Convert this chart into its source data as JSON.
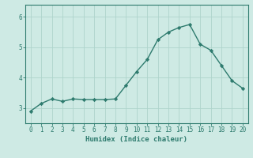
{
  "x": [
    0,
    1,
    2,
    3,
    4,
    5,
    6,
    7,
    8,
    9,
    10,
    11,
    12,
    13,
    14,
    15,
    16,
    17,
    18,
    19,
    20
  ],
  "y": [
    2.9,
    3.15,
    3.3,
    3.22,
    3.3,
    3.28,
    3.28,
    3.28,
    3.3,
    3.75,
    4.2,
    4.6,
    5.25,
    5.5,
    5.65,
    5.75,
    5.1,
    4.9,
    4.4,
    3.9,
    3.65
  ],
  "line_color": "#2e7b6e",
  "marker": "D",
  "markersize": 2.2,
  "linewidth": 1.0,
  "bg_color": "#ceeae4",
  "grid_color": "#aed4cc",
  "xlabel": "Humidex (Indice chaleur)",
  "xlabel_fontsize": 6.5,
  "ylabel_ticks": [
    3,
    4,
    5,
    6
  ],
  "ylim": [
    2.5,
    6.4
  ],
  "xlim": [
    -0.5,
    20.5
  ],
  "tick_fontsize": 5.5,
  "spine_color": "#2e7b6e"
}
